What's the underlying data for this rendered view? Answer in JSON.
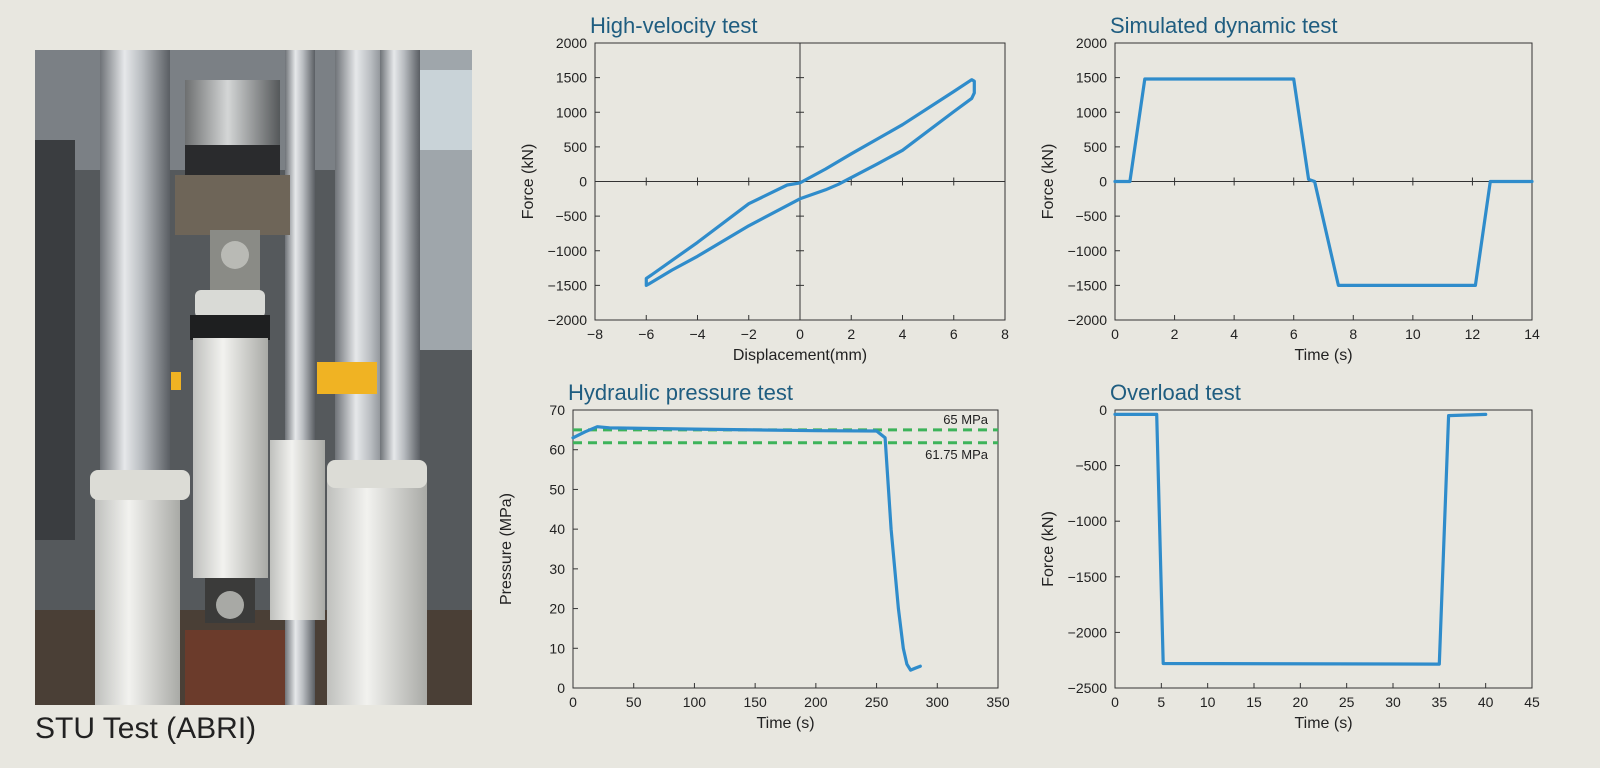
{
  "photo": {
    "caption": "STU Test (ABRI)"
  },
  "colors": {
    "series": "#2f8ccb",
    "reference": "#3db35a",
    "title": "#1f5d80",
    "background": "#e8e7e0"
  },
  "chart_data": [
    {
      "id": "hv",
      "type": "line",
      "title": "High-velocity test",
      "xlabel": "Displacement(mm)",
      "ylabel": "Force (kN)",
      "xlim": [
        -8,
        8
      ],
      "ylim": [
        -2000,
        2000
      ],
      "xticks": [
        -8,
        -6,
        -4,
        -2,
        0,
        2,
        4,
        6,
        8
      ],
      "yticks": [
        -2000,
        -1500,
        -1000,
        -500,
        0,
        500,
        1000,
        1500,
        2000
      ],
      "axes_through_origin": true,
      "grid": false,
      "series": [
        {
          "x": [
            -0.5,
            -2.0,
            -4.0,
            -5.8,
            -6.0,
            -6.0,
            -5.9,
            -5.0,
            -4.0,
            -2.0,
            0.0,
            1.0,
            1.5,
            3.0,
            4.0,
            6.0,
            6.7,
            6.8,
            6.8,
            6.7,
            6.0,
            4.0,
            2.0,
            1.0,
            0.0,
            -0.5
          ],
          "y": [
            -50,
            -320,
            -880,
            -1350,
            -1400,
            -1500,
            -1480,
            -1280,
            -1080,
            -640,
            -250,
            -120,
            -40,
            250,
            450,
            1010,
            1200,
            1280,
            1450,
            1470,
            1300,
            820,
            400,
            180,
            -20,
            -50
          ]
        }
      ]
    },
    {
      "id": "sd",
      "type": "line",
      "title": "Simulated dynamic test",
      "xlabel": "Time (s)",
      "ylabel": "Force (kN)",
      "xlim": [
        0,
        14
      ],
      "ylim": [
        -2000,
        2000
      ],
      "xticks": [
        0,
        2,
        4,
        6,
        8,
        10,
        12,
        14
      ],
      "yticks": [
        -2000,
        -1500,
        -1000,
        -500,
        0,
        500,
        1000,
        1500,
        2000
      ],
      "zero_line": true,
      "grid": false,
      "series": [
        {
          "x": [
            0,
            0.5,
            1.0,
            6.0,
            6.5,
            6.7,
            7.5,
            12.1,
            12.6,
            14
          ],
          "y": [
            0,
            0,
            1480,
            1480,
            30,
            0,
            -1500,
            -1500,
            0,
            0
          ]
        }
      ]
    },
    {
      "id": "hp",
      "type": "line",
      "title": "Hydraulic pressure test",
      "xlabel": "Time (s)",
      "ylabel": "Pressure (MPa)",
      "xlim": [
        0,
        350
      ],
      "ylim": [
        0,
        70
      ],
      "xticks": [
        0,
        50,
        100,
        150,
        200,
        250,
        300,
        350
      ],
      "yticks": [
        0,
        10,
        20,
        30,
        40,
        50,
        60,
        70
      ],
      "grid": false,
      "series": [
        {
          "x": [
            0,
            10,
            20,
            30,
            100,
            200,
            250,
            257,
            262,
            268,
            272,
            275,
            278,
            282,
            286
          ],
          "y": [
            63,
            64.5,
            65.8,
            65.5,
            65.2,
            64.8,
            64.7,
            63,
            40,
            20,
            10,
            6,
            4.5,
            5,
            5.5
          ]
        }
      ],
      "reference_lines": [
        {
          "y": 65,
          "label": "65 MPa"
        },
        {
          "y": 61.75,
          "label": "61.75 MPa"
        }
      ]
    },
    {
      "id": "ol",
      "type": "line",
      "title": "Overload test",
      "xlabel": "Time (s)",
      "ylabel": "Force (kN)",
      "xlim": [
        0,
        45
      ],
      "ylim": [
        -2500,
        0
      ],
      "xticks": [
        0,
        5,
        10,
        15,
        20,
        25,
        30,
        35,
        40,
        45
      ],
      "yticks": [
        -2500,
        -2000,
        -1500,
        -1000,
        -500,
        0
      ],
      "grid": false,
      "series": [
        {
          "x": [
            0,
            4.5,
            5.2,
            35.0,
            36.0,
            40.0
          ],
          "y": [
            -40,
            -40,
            -2280,
            -2285,
            -50,
            -40
          ]
        }
      ]
    }
  ]
}
